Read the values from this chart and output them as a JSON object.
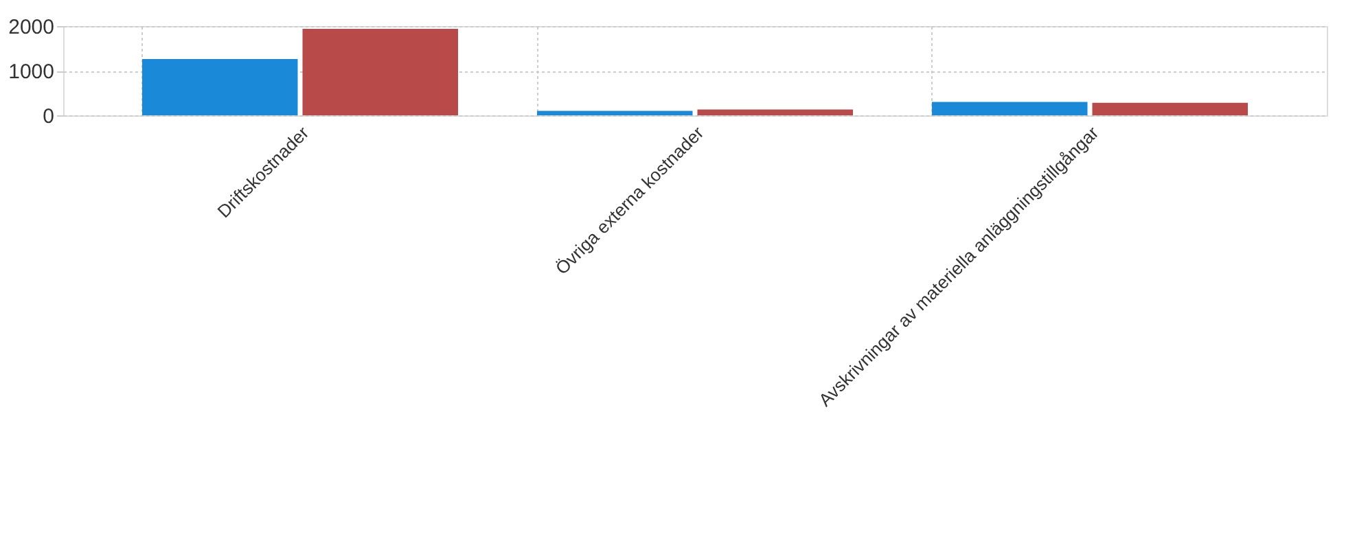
{
  "chart_data": {
    "type": "bar",
    "categories": [
      "Driftskostnader",
      "Övriga externa kostnader",
      "Avskrivningar av materiella anläggningstillgångar"
    ],
    "series": [
      {
        "color": "#1a8ad8",
        "values": [
          1260,
          100,
          300
        ]
      },
      {
        "color": "#b94a4a",
        "values": [
          1940,
          130,
          280
        ]
      }
    ],
    "ylim": [
      0,
      2000
    ],
    "yticks": [
      0,
      1000,
      2000
    ],
    "grid": true
  }
}
